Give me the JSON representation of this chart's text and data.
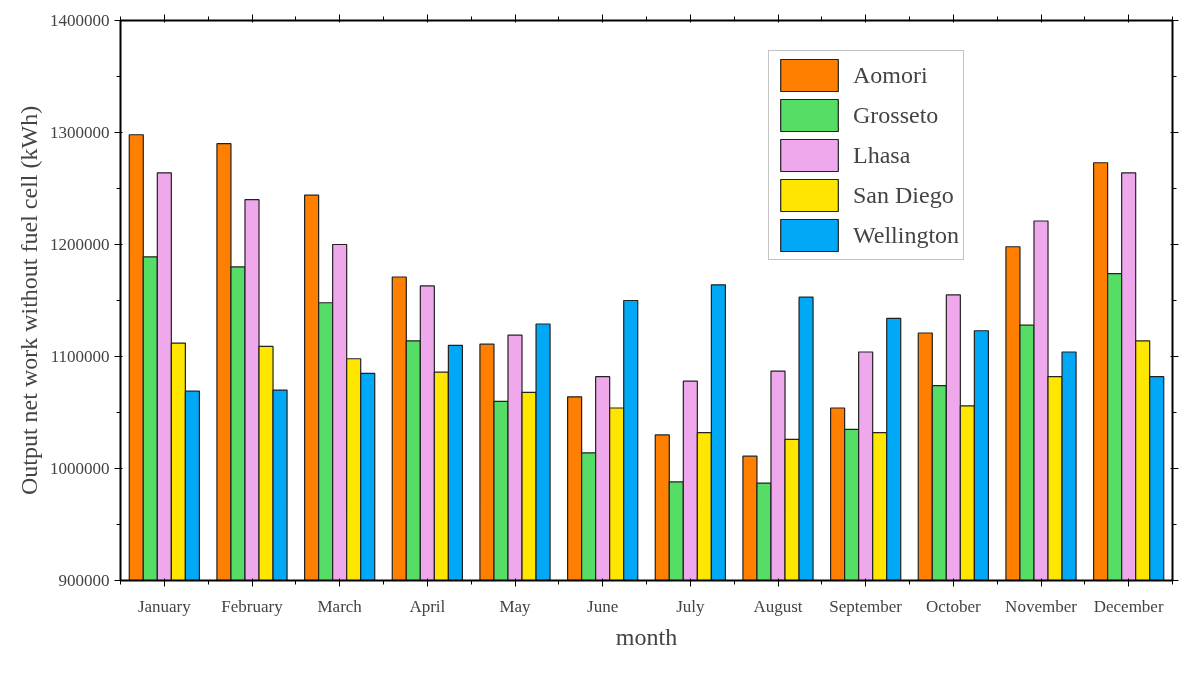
{
  "chart_data": {
    "type": "bar",
    "xlabel": "month",
    "ylabel": "Output net work without fuel cell (kWh)",
    "categories": [
      "January",
      "February",
      "March",
      "April",
      "May",
      "June",
      "July",
      "August",
      "September",
      "October",
      "November",
      "December"
    ],
    "series": [
      {
        "name": "Aomori",
        "color": "#ff7f00",
        "values": [
          1298000,
          1290000,
          1244000,
          1171000,
          1111000,
          1064000,
          1030000,
          1011000,
          1054000,
          1121000,
          1198000,
          1273000
        ]
      },
      {
        "name": "Grosseto",
        "color": "#55dd66",
        "values": [
          1189000,
          1180000,
          1148000,
          1114000,
          1060000,
          1014000,
          988000,
          987000,
          1035000,
          1074000,
          1128000,
          1174000
        ]
      },
      {
        "name": "Lhasa",
        "color": "#f0a8ec",
        "values": [
          1264000,
          1240000,
          1200000,
          1163000,
          1119000,
          1082000,
          1078000,
          1087000,
          1104000,
          1155000,
          1221000,
          1264000
        ]
      },
      {
        "name": "San Diego",
        "color": "#ffe600",
        "values": [
          1112000,
          1109000,
          1098000,
          1086000,
          1068000,
          1054000,
          1032000,
          1026000,
          1032000,
          1056000,
          1082000,
          1114000
        ]
      },
      {
        "name": "Wellington",
        "color": "#00a8f5",
        "values": [
          1069000,
          1070000,
          1085000,
          1110000,
          1129000,
          1150000,
          1164000,
          1153000,
          1134000,
          1123000,
          1104000,
          1082000
        ]
      }
    ],
    "ylim": [
      900000,
      1400000
    ],
    "yticks": [
      900000,
      1000000,
      1100000,
      1200000,
      1300000,
      1400000
    ],
    "grid": false,
    "legend": "top right"
  }
}
